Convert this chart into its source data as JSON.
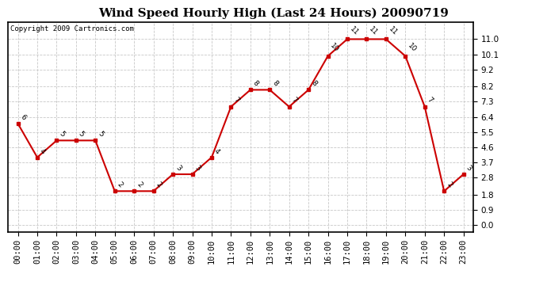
{
  "title": "Wind Speed Hourly High (Last 24 Hours) 20090719",
  "copyright": "Copyright 2009 Cartronics.com",
  "hours": [
    "00:00",
    "01:00",
    "02:00",
    "03:00",
    "04:00",
    "05:00",
    "06:00",
    "07:00",
    "08:00",
    "09:00",
    "10:00",
    "11:00",
    "12:00",
    "13:00",
    "14:00",
    "15:00",
    "16:00",
    "17:00",
    "18:00",
    "19:00",
    "20:00",
    "21:00",
    "22:00",
    "23:00"
  ],
  "values": [
    6,
    4,
    5,
    5,
    5,
    2,
    2,
    2,
    3,
    3,
    4,
    7,
    8,
    8,
    7,
    8,
    10,
    11,
    11,
    11,
    10,
    7,
    2,
    3
  ],
  "line_color": "#cc0000",
  "marker_color": "#cc0000",
  "bg_color": "#ffffff",
  "plot_bg_color": "#ffffff",
  "grid_color": "#c8c8c8",
  "title_fontsize": 11,
  "copyright_fontsize": 6.5,
  "label_fontsize": 7.5,
  "yticks": [
    0.0,
    0.9,
    1.8,
    2.8,
    3.7,
    4.6,
    5.5,
    6.4,
    7.3,
    8.2,
    9.2,
    10.1,
    11.0
  ],
  "ylim": [
    -0.4,
    12.0
  ],
  "border_color": "#000000"
}
